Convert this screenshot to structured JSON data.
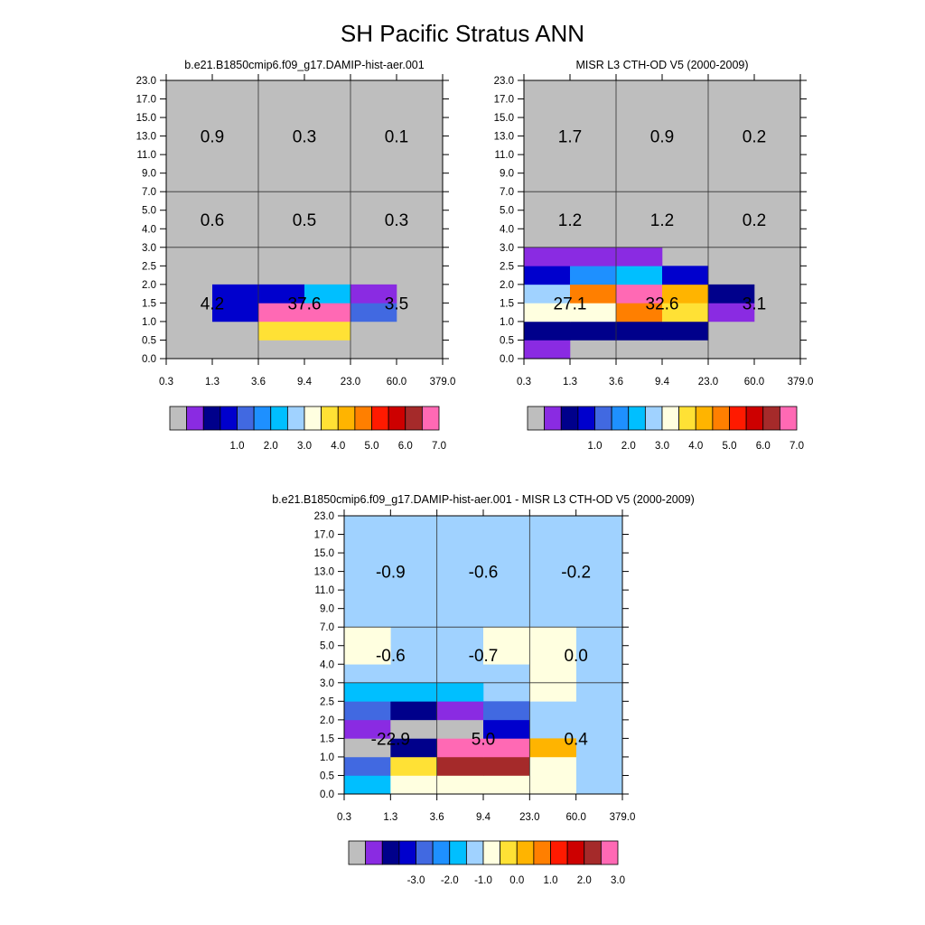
{
  "title": "SH Pacific Stratus ANN",
  "x_ticks": [
    "0.3",
    "1.3",
    "3.6",
    "9.4",
    "23.0",
    "60.0",
    "379.0"
  ],
  "y_ticks": [
    "0.0",
    "0.5",
    "1.0",
    "1.5",
    "2.0",
    "2.5",
    "3.0",
    "4.0",
    "5.0",
    "7.0",
    "9.0",
    "11.0",
    "13.0",
    "15.0",
    "17.0",
    "23.0"
  ],
  "chart_data": [
    {
      "type": "heatmap",
      "title": "b.e21.B1850cmip6.f09_g17.DAMIP-hist-aer.001",
      "x_bins": [
        "0.3",
        "1.3",
        "3.6",
        "9.4",
        "23.0",
        "60.0",
        "379.0"
      ],
      "y_bins": [
        "0.0",
        "0.5",
        "1.0",
        "1.5",
        "2.0",
        "2.5",
        "3.0",
        "4.0",
        "5.0",
        "7.0",
        "9.0",
        "11.0",
        "13.0",
        "15.0",
        "17.0",
        "23.0"
      ],
      "cells": [
        {
          "col": 1,
          "row": 2,
          "color": "#0000cd"
        },
        {
          "col": 1,
          "row": 3,
          "color": "#0000cd"
        },
        {
          "col": 2,
          "row": 1,
          "color": "#ffe135"
        },
        {
          "col": 3,
          "row": 1,
          "color": "#ffe135"
        },
        {
          "col": 2,
          "row": 2,
          "color": "#ff69b4"
        },
        {
          "col": 3,
          "row": 2,
          "color": "#ff69b4"
        },
        {
          "col": 2,
          "row": 3,
          "color": "#0000cd"
        },
        {
          "col": 3,
          "row": 3,
          "color": "#00bfff"
        },
        {
          "col": 4,
          "row": 2,
          "color": "#4169e1"
        },
        {
          "col": 4,
          "row": 3,
          "color": "#8a2be2"
        }
      ],
      "region_labels": [
        {
          "text": "0.9",
          "x_range": [
            "0.3",
            "3.6"
          ],
          "y_range": [
            "7.0",
            "23.0"
          ]
        },
        {
          "text": "0.3",
          "x_range": [
            "3.6",
            "23.0"
          ],
          "y_range": [
            "7.0",
            "23.0"
          ]
        },
        {
          "text": "0.1",
          "x_range": [
            "23.0",
            "379.0"
          ],
          "y_range": [
            "7.0",
            "23.0"
          ]
        },
        {
          "text": "0.6",
          "x_range": [
            "0.3",
            "3.6"
          ],
          "y_range": [
            "3.0",
            "7.0"
          ]
        },
        {
          "text": "0.5",
          "x_range": [
            "3.6",
            "23.0"
          ],
          "y_range": [
            "3.0",
            "7.0"
          ]
        },
        {
          "text": "0.3",
          "x_range": [
            "23.0",
            "379.0"
          ],
          "y_range": [
            "3.0",
            "7.0"
          ]
        },
        {
          "text": "4.2",
          "x_range": [
            "0.3",
            "3.6"
          ],
          "y_range": [
            "0.0",
            "3.0"
          ]
        },
        {
          "text": "37.6",
          "x_range": [
            "3.6",
            "23.0"
          ],
          "y_range": [
            "0.0",
            "3.0"
          ]
        },
        {
          "text": "3.5",
          "x_range": [
            "23.0",
            "379.0"
          ],
          "y_range": [
            "0.0",
            "3.0"
          ]
        }
      ],
      "colorbar": {
        "colors": [
          "#bebebe",
          "#8a2be2",
          "#00008b",
          "#0000cd",
          "#4169e1",
          "#1e90ff",
          "#00bfff",
          "#a0d2ff",
          "#ffffe0",
          "#ffe135",
          "#ffb400",
          "#ff7f00",
          "#ff1a00",
          "#cd0000",
          "#a52a2a",
          "#ff69b4"
        ],
        "labels": [
          "1.0",
          "2.0",
          "3.0",
          "4.0",
          "5.0",
          "6.0",
          "7.0"
        ]
      }
    },
    {
      "type": "heatmap",
      "title": "MISR L3 CTH-OD V5 (2000-2009)",
      "x_bins": [
        "0.3",
        "1.3",
        "3.6",
        "9.4",
        "23.0",
        "60.0",
        "379.0"
      ],
      "y_bins": [
        "0.0",
        "0.5",
        "1.0",
        "1.5",
        "2.0",
        "2.5",
        "3.0",
        "4.0",
        "5.0",
        "7.0",
        "9.0",
        "11.0",
        "13.0",
        "15.0",
        "17.0",
        "23.0"
      ],
      "cells": [
        {
          "col": 0,
          "row": 0,
          "color": "#8a2be2"
        },
        {
          "col": 0,
          "row": 1,
          "color": "#00008b"
        },
        {
          "col": 1,
          "row": 1,
          "color": "#00008b"
        },
        {
          "col": 2,
          "row": 1,
          "color": "#00008b"
        },
        {
          "col": 3,
          "row": 1,
          "color": "#00008b"
        },
        {
          "col": 0,
          "row": 2,
          "color": "#ffffe0"
        },
        {
          "col": 1,
          "row": 2,
          "color": "#ffffe0"
        },
        {
          "col": 2,
          "row": 2,
          "color": "#ff7f00"
        },
        {
          "col": 3,
          "row": 2,
          "color": "#ffe135"
        },
        {
          "col": 4,
          "row": 2,
          "color": "#8a2be2"
        },
        {
          "col": 0,
          "row": 3,
          "color": "#a0d2ff"
        },
        {
          "col": 1,
          "row": 3,
          "color": "#ff7f00"
        },
        {
          "col": 2,
          "row": 3,
          "color": "#ff69b4"
        },
        {
          "col": 3,
          "row": 3,
          "color": "#ffb400"
        },
        {
          "col": 4,
          "row": 3,
          "color": "#00008b"
        },
        {
          "col": 0,
          "row": 4,
          "color": "#0000cd"
        },
        {
          "col": 1,
          "row": 4,
          "color": "#1e90ff"
        },
        {
          "col": 2,
          "row": 4,
          "color": "#00bfff"
        },
        {
          "col": 3,
          "row": 4,
          "color": "#0000cd"
        },
        {
          "col": 0,
          "row": 5,
          "color": "#8a2be2"
        },
        {
          "col": 1,
          "row": 5,
          "color": "#8a2be2"
        },
        {
          "col": 2,
          "row": 5,
          "color": "#8a2be2"
        }
      ],
      "region_labels": [
        {
          "text": "1.7",
          "x_range": [
            "0.3",
            "3.6"
          ],
          "y_range": [
            "7.0",
            "23.0"
          ]
        },
        {
          "text": "0.9",
          "x_range": [
            "3.6",
            "23.0"
          ],
          "y_range": [
            "7.0",
            "23.0"
          ]
        },
        {
          "text": "0.2",
          "x_range": [
            "23.0",
            "379.0"
          ],
          "y_range": [
            "7.0",
            "23.0"
          ]
        },
        {
          "text": "1.2",
          "x_range": [
            "0.3",
            "3.6"
          ],
          "y_range": [
            "3.0",
            "7.0"
          ]
        },
        {
          "text": "1.2",
          "x_range": [
            "3.6",
            "23.0"
          ],
          "y_range": [
            "3.0",
            "7.0"
          ]
        },
        {
          "text": "0.2",
          "x_range": [
            "23.0",
            "379.0"
          ],
          "y_range": [
            "3.0",
            "7.0"
          ]
        },
        {
          "text": "27.1",
          "x_range": [
            "0.3",
            "3.6"
          ],
          "y_range": [
            "0.0",
            "3.0"
          ]
        },
        {
          "text": "32.6",
          "x_range": [
            "3.6",
            "23.0"
          ],
          "y_range": [
            "0.0",
            "3.0"
          ]
        },
        {
          "text": "3.1",
          "x_range": [
            "23.0",
            "379.0"
          ],
          "y_range": [
            "0.0",
            "3.0"
          ]
        }
      ],
      "colorbar": {
        "colors": [
          "#bebebe",
          "#8a2be2",
          "#00008b",
          "#0000cd",
          "#4169e1",
          "#1e90ff",
          "#00bfff",
          "#a0d2ff",
          "#ffffe0",
          "#ffe135",
          "#ffb400",
          "#ff7f00",
          "#ff1a00",
          "#cd0000",
          "#a52a2a",
          "#ff69b4"
        ],
        "labels": [
          "1.0",
          "2.0",
          "3.0",
          "4.0",
          "5.0",
          "6.0",
          "7.0"
        ]
      }
    },
    {
      "type": "heatmap",
      "title": "b.e21.B1850cmip6.f09_g17.DAMIP-hist-aer.001 - MISR L3 CTH-OD V5 (2000-2009)",
      "x_bins": [
        "0.3",
        "1.3",
        "3.6",
        "9.4",
        "23.0",
        "60.0",
        "379.0"
      ],
      "y_bins": [
        "0.0",
        "0.5",
        "1.0",
        "1.5",
        "2.0",
        "2.5",
        "3.0",
        "4.0",
        "5.0",
        "7.0",
        "9.0",
        "11.0",
        "13.0",
        "15.0",
        "17.0",
        "23.0"
      ],
      "background": "#a0d2ff",
      "cells": [
        {
          "col": 0,
          "row": 0,
          "color": "#00bfff"
        },
        {
          "col": 1,
          "row": 0,
          "color": "#ffffe0"
        },
        {
          "col": 2,
          "row": 0,
          "color": "#ffffe0"
        },
        {
          "col": 3,
          "row": 0,
          "color": "#ffffe0"
        },
        {
          "col": 4,
          "row": 0,
          "color": "#ffffe0"
        },
        {
          "col": 0,
          "row": 1,
          "color": "#4169e1"
        },
        {
          "col": 1,
          "row": 1,
          "color": "#ffe135"
        },
        {
          "col": 2,
          "row": 1,
          "color": "#a52a2a"
        },
        {
          "col": 3,
          "row": 1,
          "color": "#a52a2a"
        },
        {
          "col": 4,
          "row": 1,
          "color": "#ffffe0"
        },
        {
          "col": 0,
          "row": 2,
          "color": "#bebebe"
        },
        {
          "col": 1,
          "row": 2,
          "color": "#00008b"
        },
        {
          "col": 2,
          "row": 2,
          "color": "#ff69b4"
        },
        {
          "col": 3,
          "row": 2,
          "color": "#ff69b4"
        },
        {
          "col": 4,
          "row": 2,
          "color": "#ffb400"
        },
        {
          "col": 0,
          "row": 3,
          "color": "#8a2be2"
        },
        {
          "col": 1,
          "row": 3,
          "color": "#bebebe"
        },
        {
          "col": 2,
          "row": 3,
          "color": "#bebebe"
        },
        {
          "col": 3,
          "row": 3,
          "color": "#0000cd"
        },
        {
          "col": 0,
          "row": 4,
          "color": "#4169e1"
        },
        {
          "col": 1,
          "row": 4,
          "color": "#00008b"
        },
        {
          "col": 2,
          "row": 4,
          "color": "#8a2be2"
        },
        {
          "col": 3,
          "row": 4,
          "color": "#4169e1"
        },
        {
          "col": 0,
          "row": 5,
          "color": "#00bfff"
        },
        {
          "col": 1,
          "row": 5,
          "color": "#00bfff"
        },
        {
          "col": 2,
          "row": 5,
          "color": "#00bfff"
        },
        {
          "col": 4,
          "row": 5,
          "color": "#ffffe0"
        },
        {
          "col": 4,
          "row": 6,
          "color": "#ffffe0"
        },
        {
          "col": 0,
          "row": 7,
          "color": "#ffffe0"
        },
        {
          "col": 3,
          "row": 7,
          "color": "#ffffe0"
        },
        {
          "col": 4,
          "row": 7,
          "color": "#ffffe0"
        },
        {
          "col": 0,
          "row": 8,
          "color": "#ffffe0"
        },
        {
          "col": 3,
          "row": 8,
          "color": "#ffffe0"
        },
        {
          "col": 4,
          "row": 8,
          "color": "#ffffe0"
        }
      ],
      "region_labels": [
        {
          "text": "-0.9",
          "x_range": [
            "0.3",
            "3.6"
          ],
          "y_range": [
            "7.0",
            "23.0"
          ]
        },
        {
          "text": "-0.6",
          "x_range": [
            "3.6",
            "23.0"
          ],
          "y_range": [
            "7.0",
            "23.0"
          ]
        },
        {
          "text": "-0.2",
          "x_range": [
            "23.0",
            "379.0"
          ],
          "y_range": [
            "7.0",
            "23.0"
          ]
        },
        {
          "text": "-0.6",
          "x_range": [
            "0.3",
            "3.6"
          ],
          "y_range": [
            "3.0",
            "7.0"
          ]
        },
        {
          "text": "-0.7",
          "x_range": [
            "3.6",
            "23.0"
          ],
          "y_range": [
            "3.0",
            "7.0"
          ]
        },
        {
          "text": "0.0",
          "x_range": [
            "23.0",
            "379.0"
          ],
          "y_range": [
            "3.0",
            "7.0"
          ]
        },
        {
          "text": "-22.9",
          "x_range": [
            "0.3",
            "3.6"
          ],
          "y_range": [
            "0.0",
            "3.0"
          ]
        },
        {
          "text": "5.0",
          "x_range": [
            "3.6",
            "23.0"
          ],
          "y_range": [
            "0.0",
            "3.0"
          ]
        },
        {
          "text": "0.4",
          "x_range": [
            "23.0",
            "379.0"
          ],
          "y_range": [
            "0.0",
            "3.0"
          ]
        }
      ],
      "colorbar": {
        "colors": [
          "#bebebe",
          "#8a2be2",
          "#00008b",
          "#0000cd",
          "#4169e1",
          "#1e90ff",
          "#00bfff",
          "#a0d2ff",
          "#ffffe0",
          "#ffe135",
          "#ffb400",
          "#ff7f00",
          "#ff1a00",
          "#cd0000",
          "#a52a2a",
          "#ff69b4"
        ],
        "labels": [
          "-3.0",
          "-2.0",
          "-1.0",
          "0.0",
          "1.0",
          "2.0",
          "3.0"
        ]
      }
    }
  ]
}
